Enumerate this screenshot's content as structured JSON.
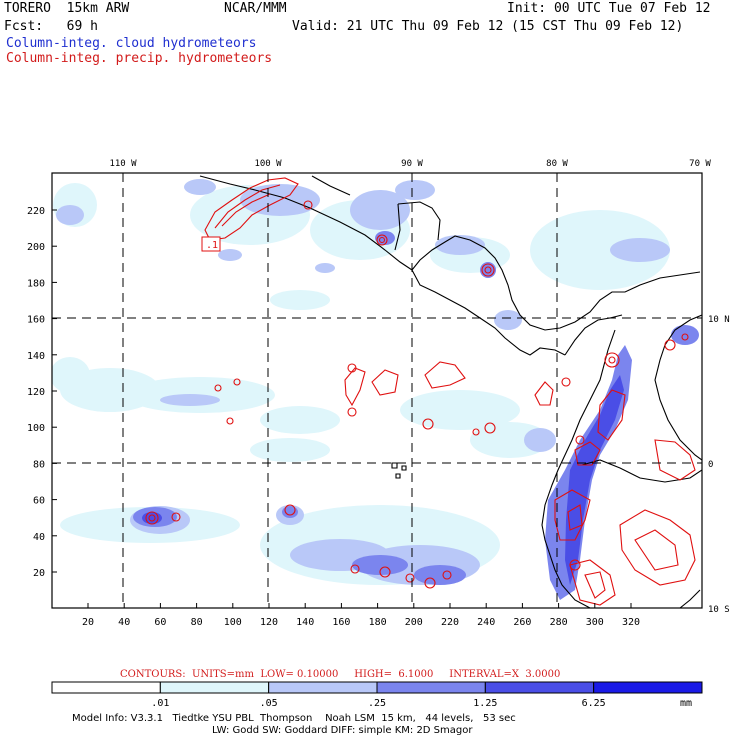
{
  "header": {
    "title": "TORERO  15km ARW",
    "org": "NCAR/MMM",
    "init": "Init: 00 UTC Tue 07 Feb 12",
    "fcst": "Fcst:   69 h",
    "valid": "Valid: 21 UTC Thu 09 Feb 12 (15 CST Thu 09 Feb 12)",
    "field_cloud": "Column-integ. cloud hydrometeors",
    "field_precip": "Column-integ. precip. hydrometeors"
  },
  "map": {
    "lon_labels": [
      "110 W",
      "100 W",
      "90 W",
      "80 W",
      "70 W"
    ],
    "lat_labels": [
      "10 N",
      "0",
      "10 S"
    ],
    "x_ticks": [
      "20",
      "40",
      "60",
      "80",
      "100",
      "120",
      "140",
      "160",
      "180",
      "200",
      "220",
      "240",
      "260",
      "280",
      "300",
      "320"
    ],
    "y_ticks": [
      "20",
      "40",
      "60",
      "80",
      "100",
      "120",
      "140",
      "160",
      "180",
      "200",
      "220"
    ],
    "contour_label": ".1"
  },
  "contour_info": "CONTOURS:  UNITS=mm  LOW= 0.10000     HIGH=  6.1000     INTERVAL=X  3.0000",
  "colorbar": {
    "labels": [
      ".01",
      ".05",
      ".25",
      "1.25",
      "6.25"
    ],
    "unit": "mm",
    "colors": [
      "#ffffff",
      "#dff6fb",
      "#b9c8f8",
      "#7b85ee",
      "#4a4ee6",
      "#1a1ae6"
    ]
  },
  "model_info": {
    "line1": "Model Info: V3.3.1   Tiedtke YSU PBL  Thompson    Noah LSM  15 km,   44 levels,   53 sec",
    "line2": "LW: Godd SW: Goddard DIFF: simple KM: 2D Smagor"
  }
}
